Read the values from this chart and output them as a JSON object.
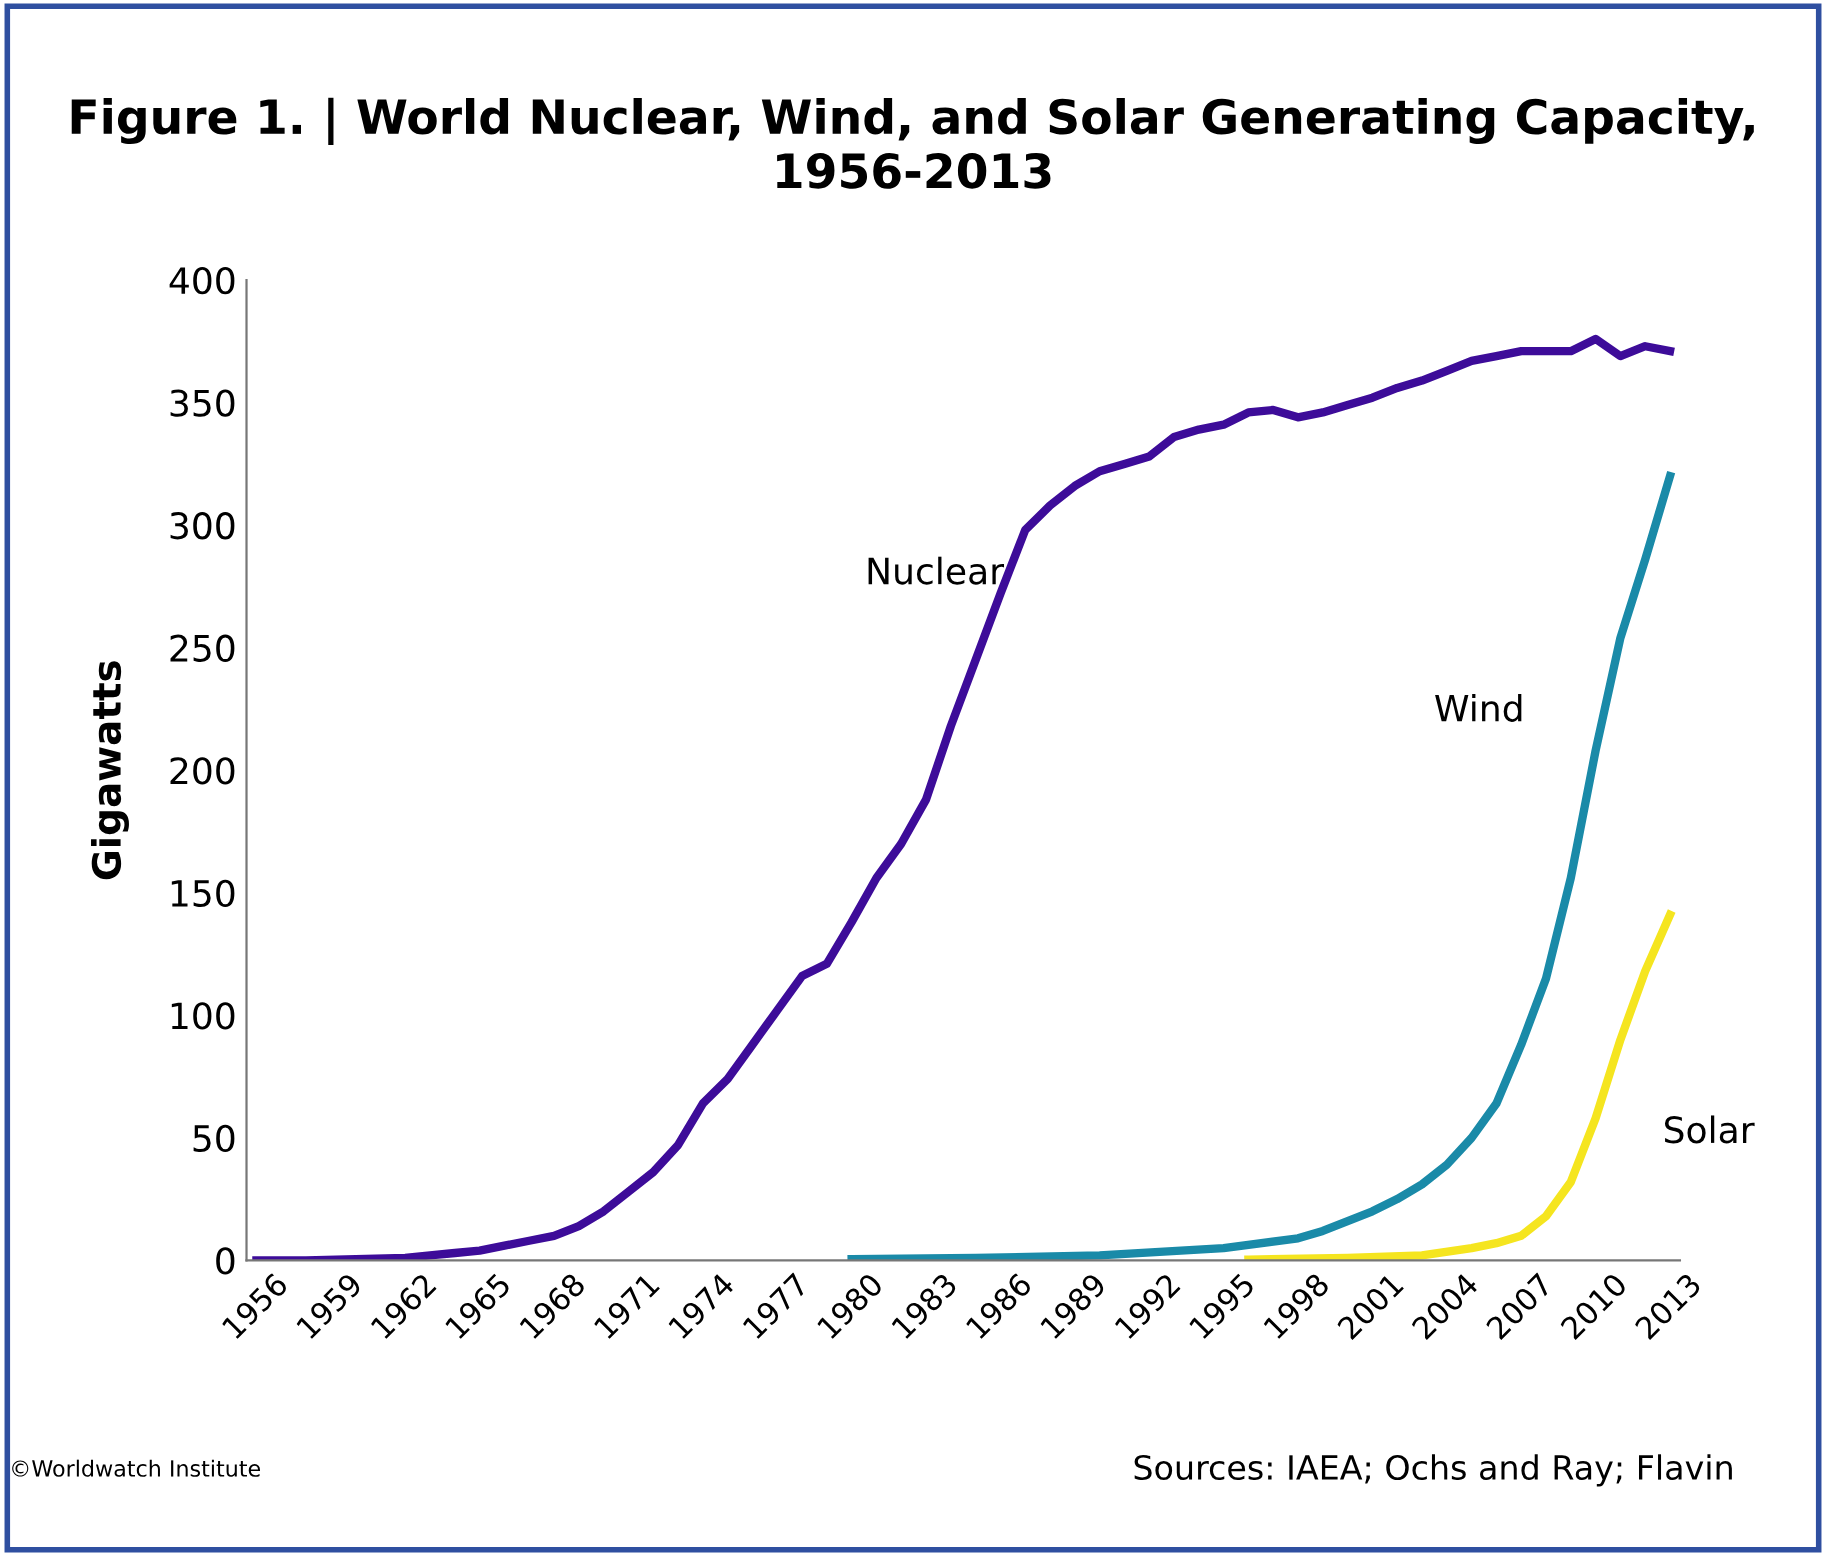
{
  "chart_data": {
    "type": "line",
    "title": "Figure 1. | World Nuclear, Wind, and Solar Generating Capacity, 1956-2013",
    "ylabel": "Gigawatts",
    "xlim": [
      1955.6,
      2013.4
    ],
    "xticks": [
      1956,
      1959,
      1962,
      1965,
      1968,
      1971,
      1974,
      1977,
      1980,
      1983,
      1986,
      1989,
      1992,
      1995,
      1998,
      2001,
      2004,
      2007,
      2010,
      2013
    ],
    "ylim": [
      0,
      400
    ],
    "yticks": [
      0,
      50,
      100,
      150,
      200,
      250,
      300,
      350,
      400
    ],
    "grid": false,
    "legend": false,
    "marker": "none",
    "line_style": "solid",
    "series": [
      {
        "name": "Nuclear",
        "color": "#3d0c99",
        "x": [
          1956,
          1958,
          1960,
          1962,
          1963,
          1964,
          1965,
          1966,
          1967,
          1968,
          1969,
          1970,
          1971,
          1972,
          1973,
          1974,
          1975,
          1976,
          1977,
          1978,
          1979,
          1980,
          1981,
          1982,
          1983,
          1984,
          1985,
          1986,
          1987,
          1988,
          1989,
          1990,
          1991,
          1992,
          1993,
          1994,
          1995,
          1996,
          1997,
          1998,
          1999,
          2000,
          2001,
          2002,
          2003,
          2004,
          2005,
          2006,
          2007,
          2008,
          2009,
          2010,
          2011,
          2012,
          2013
        ],
        "values": [
          0,
          0,
          0.5,
          1,
          2,
          3,
          4,
          6,
          8,
          10,
          14,
          20,
          28,
          36,
          47,
          64,
          74,
          88,
          102,
          116,
          121,
          138,
          156,
          170,
          188,
          218,
          245,
          272,
          298,
          308,
          316,
          322,
          325,
          328,
          336,
          339,
          341,
          346,
          347,
          344,
          346,
          349,
          352,
          356,
          359,
          363,
          367,
          369,
          371,
          371,
          371,
          376,
          369,
          373,
          371
        ]
      },
      {
        "name": "Wind",
        "color": "#1a8aa8",
        "x": [
          1980,
          1985,
          1990,
          1995,
          1998,
          1999,
          2000,
          2001,
          2002,
          2003,
          2004,
          2005,
          2006,
          2007,
          2008,
          2009,
          2010,
          2011,
          2012,
          2013
        ],
        "values": [
          0.5,
          1,
          2,
          5,
          9,
          12,
          16,
          20,
          25,
          31,
          39,
          50,
          64,
          88,
          115,
          156,
          208,
          254,
          286,
          320
        ]
      },
      {
        "name": "Solar",
        "color": "#f5e51f",
        "x": [
          1996,
          2000,
          2003,
          2005,
          2006,
          2007,
          2008,
          2009,
          2010,
          2011,
          2012,
          2013
        ],
        "values": [
          0.3,
          1,
          2,
          5,
          7,
          10,
          18,
          32,
          58,
          90,
          118,
          141
        ]
      }
    ],
    "annotations": [
      "©Worldwatch Institute",
      "Sources: IAEA; Ochs and Ray; Flavin"
    ]
  }
}
